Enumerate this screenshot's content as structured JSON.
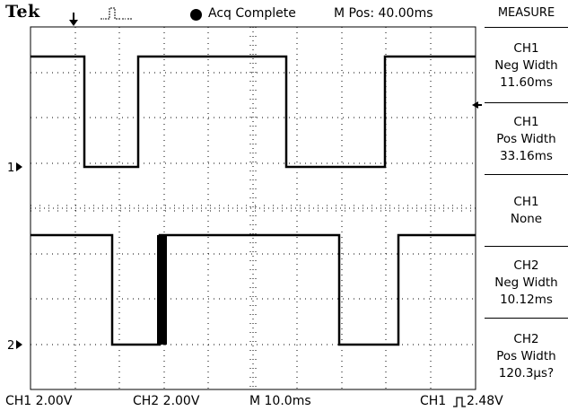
{
  "header": {
    "brand": "Tek",
    "acq_status": "Acq Complete",
    "m_pos": "M Pos: 40.00ms"
  },
  "channel_markers": {
    "ch1": "1",
    "ch2": "2"
  },
  "measure": {
    "title": "MEASURE",
    "items": [
      {
        "line1": "CH1",
        "line2": "Neg Width",
        "line3": "11.60ms"
      },
      {
        "line1": "CH1",
        "line2": "Pos Width",
        "line3": "33.16ms"
      },
      {
        "line1": "CH1",
        "line2": "None",
        "line3": ""
      },
      {
        "line1": "CH2",
        "line2": "Neg Width",
        "line3": "10.12ms"
      },
      {
        "line1": "CH2",
        "line2": "Pos Width",
        "line3": "120.3µs?"
      }
    ]
  },
  "footer": {
    "ch1_scale": "CH1  2.00V",
    "ch2_scale": "CH2  2.00V",
    "timebase": "M 10.0ms",
    "trigger_source": "CH1",
    "trigger_level": "2.48V"
  },
  "colors": {
    "background": "#ffffff",
    "trace": "#000000",
    "graticule": "#000000"
  }
}
